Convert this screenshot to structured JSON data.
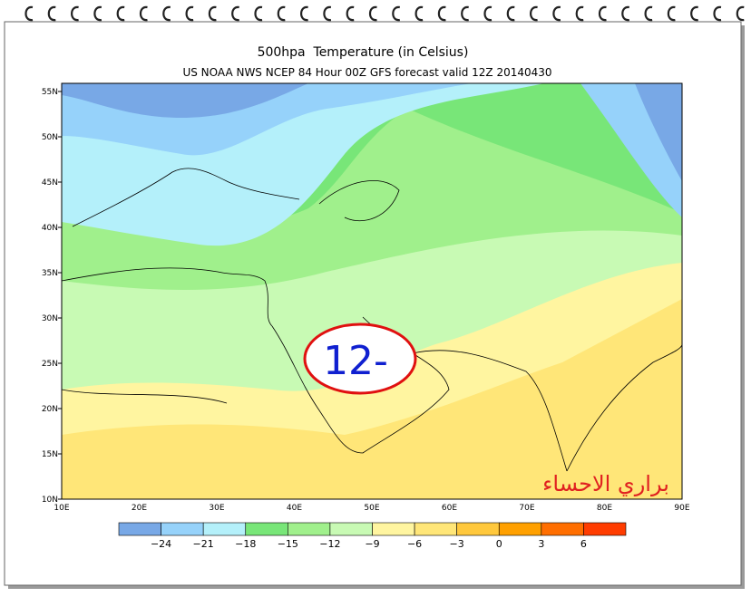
{
  "title": "500hpa  Temperature (in Celsius)",
  "subtitle": "US NOAA NWS NCEP 84 Hour 00Z GFS forecast valid 12Z 20140430",
  "lat_labels": [
    "55N",
    "50N",
    "45N",
    "40N",
    "35N",
    "30N",
    "25N",
    "20N",
    "15N",
    "10N"
  ],
  "lon_labels": [
    "10E",
    "20E",
    "30E",
    "40E",
    "50E",
    "60E",
    "70E",
    "80E",
    "90E"
  ],
  "legend": {
    "colors": [
      "#78a8e6",
      "#96d2fa",
      "#b4f0fa",
      "#78e678",
      "#a0f08c",
      "#c8fab4",
      "#fff5a0",
      "#ffe678",
      "#ffc83c",
      "#ffa000",
      "#ff6e00",
      "#ff3c00"
    ],
    "ticks": [
      {
        "value": -24,
        "label": "−24"
      },
      {
        "value": -21,
        "label": "−21"
      },
      {
        "value": -18,
        "label": "−18"
      },
      {
        "value": -15,
        "label": "−15"
      },
      {
        "value": -12,
        "label": "−12"
      },
      {
        "value": -9,
        "label": "−9"
      },
      {
        "value": -6,
        "label": "−6"
      },
      {
        "value": -3,
        "label": "−3"
      },
      0,
      3,
      6
    ]
  },
  "annotation": "12-",
  "watermark": "براري الاحساء"
}
